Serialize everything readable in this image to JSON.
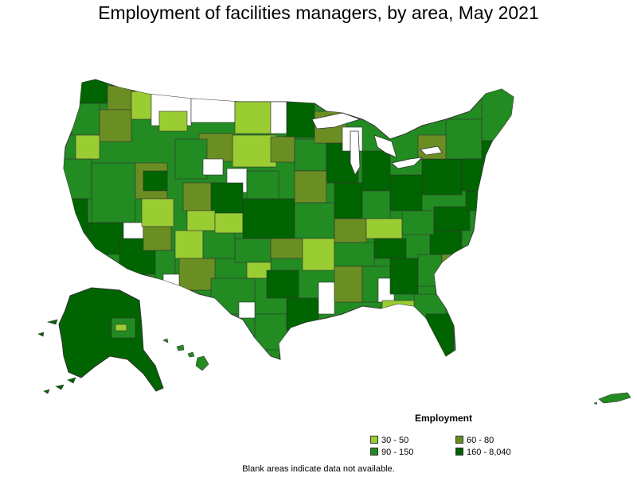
{
  "title": "Employment of facilities managers, by area, May 2021",
  "legend": {
    "title": "Employment",
    "items": [
      {
        "label": "30 - 50",
        "color": "#9ACD32"
      },
      {
        "label": "60 - 80",
        "color": "#6B8E23"
      },
      {
        "label": "90 - 150",
        "color": "#228B22"
      },
      {
        "label": "160 - 8,040",
        "color": "#006400"
      }
    ]
  },
  "note": "Blank areas indicate data not available.",
  "colors": {
    "no_data": "#ffffff",
    "border": "#333333"
  }
}
